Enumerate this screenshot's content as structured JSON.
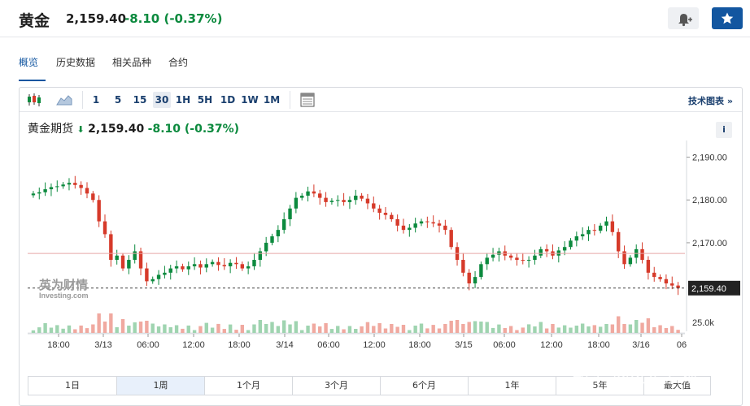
{
  "header": {
    "name": "黄金",
    "price": "2,159.40",
    "change": "-8.10 (-0.37%)"
  },
  "nav": {
    "tabs": [
      "概览",
      "历史数据",
      "相关品种",
      "合约"
    ]
  },
  "toolbar": {
    "intervals": [
      "1",
      "5",
      "15",
      "30",
      "1H",
      "5H",
      "1D",
      "1W",
      "1M"
    ],
    "active_interval": "30",
    "tech_chart_link": "技术图表 »"
  },
  "chart_header": {
    "name": "黄金期货",
    "price": "2,159.40",
    "change": "-8.10 (-0.37%)",
    "info": "i"
  },
  "logo": {
    "cn": "英为财情",
    "en": "Investing.com"
  },
  "chart_data": {
    "type": "candlestick",
    "y_ticks": [
      "2,190.00",
      "2,180.00",
      "2,170.00"
    ],
    "ylim": [
      2155,
      2192
    ],
    "last_price_label": "2,159.40",
    "reference_line": 2167.5,
    "volume_tick": "25.0k",
    "x_ticks": [
      "18:00",
      "3/13",
      "06:00",
      "12:00",
      "18:00",
      "3/14",
      "06:00",
      "12:00",
      "18:00",
      "3/15",
      "06:00",
      "12:00",
      "18:00",
      "3/16",
      "06"
    ],
    "series": [
      {
        "values": [
          2181.5,
          2181.8,
          2182.5,
          2183.0,
          2183.2,
          2183.6,
          2184.0,
          2183.5,
          2182.8,
          2181.5,
          2180.0,
          2175.0,
          2172.0,
          2166.0,
          2167.0,
          2164.0,
          2166.0,
          2168.0,
          2164.0,
          2161.0,
          2161.5,
          2162.5,
          2163.0,
          2164.0,
          2164.5,
          2163.8,
          2164.5,
          2165.0,
          2164.2,
          2165.0,
          2165.5,
          2164.8,
          2164.5,
          2165.3,
          2165.0,
          2164.0,
          2164.5,
          2166.0,
          2168.0,
          2170.0,
          2171.5,
          2173.0,
          2175.5,
          2178.0,
          2180.5,
          2181.0,
          2182.0,
          2181.5,
          2180.5,
          2179.5,
          2179.8,
          2180.0,
          2179.5,
          2180.0,
          2181.0,
          2180.3,
          2179.2,
          2178.0,
          2177.0,
          2176.5,
          2175.5,
          2174.0,
          2173.0,
          2173.5,
          2174.5,
          2175.0,
          2174.8,
          2174.5,
          2174.0,
          2173.0,
          2169.0,
          2166.0,
          2163.0,
          2160.5,
          2162.0,
          2165.0,
          2166.5,
          2167.2,
          2168.0,
          2167.0,
          2166.5,
          2166.0,
          2165.8,
          2166.0,
          2167.0,
          2168.5,
          2168.0,
          2167.0,
          2168.2,
          2169.0,
          2170.5,
          2171.5,
          2172.0,
          2173.0,
          2172.8,
          2174.0,
          2175.0,
          2172.5,
          2168.0,
          2165.0,
          2166.5,
          2168.5,
          2166.0,
          2163.0,
          2162.0,
          2161.5,
          2160.5,
          2160.0,
          2159.4
        ]
      }
    ]
  }
}
